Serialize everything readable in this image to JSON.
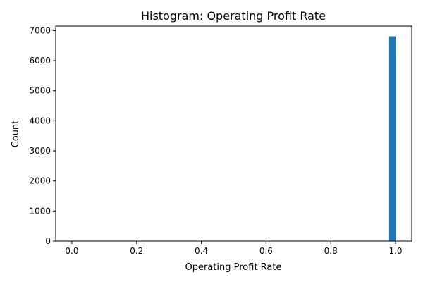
{
  "chart_data": {
    "type": "bar",
    "title": "Histogram:  Operating Profit Rate",
    "xlabel": "Operating Profit Rate",
    "ylabel": "Count",
    "xlim": [
      -0.05,
      1.05
    ],
    "ylim": [
      0,
      7150
    ],
    "xticks": [
      "0.0",
      "0.2",
      "0.4",
      "0.6",
      "0.8",
      "1.0"
    ],
    "xtick_values": [
      0,
      0.2,
      0.4,
      0.6,
      0.8,
      1.0
    ],
    "yticks": [
      "0",
      "1000",
      "2000",
      "3000",
      "4000",
      "5000",
      "6000",
      "7000"
    ],
    "ytick_values": [
      0,
      1000,
      2000,
      3000,
      4000,
      5000,
      6000,
      7000
    ],
    "bins": [
      {
        "x0": 0.96,
        "x1": 0.98,
        "count": 10
      },
      {
        "x0": 0.98,
        "x1": 1.0,
        "count": 6810
      }
    ],
    "bar_color": "#1f77b4",
    "grid": false,
    "legend": "none"
  }
}
